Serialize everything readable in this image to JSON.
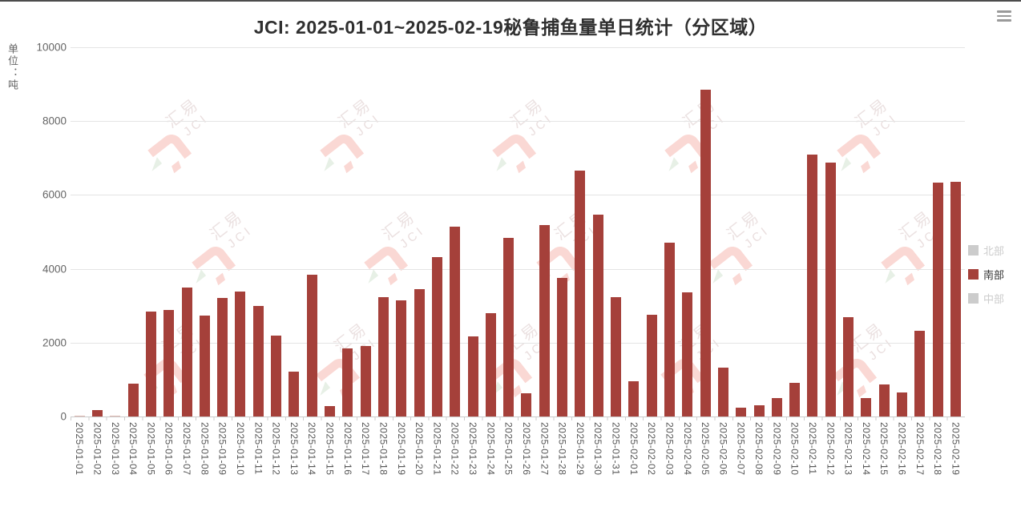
{
  "header": {
    "title": "JCI: 2025-01-01~2025-02-19秘鲁捕鱼量单日统计（分区域）"
  },
  "icons": {
    "menu": "hamburger-menu-icon"
  },
  "y_axis": {
    "name": "单位：吨",
    "ticks": [
      0,
      2000,
      4000,
      6000,
      8000,
      10000
    ]
  },
  "legend": {
    "position": "right",
    "items": [
      {
        "label": "北部",
        "selected": false
      },
      {
        "label": "南部",
        "selected": true
      },
      {
        "label": "中部",
        "selected": false
      }
    ]
  },
  "watermark": {
    "text_cn": "汇易",
    "text_en": "JCI"
  },
  "colors": {
    "bar": "#a5403a",
    "bar_tiny": "#deb7b1",
    "legend_unselected": "#cccccc",
    "legend_selected_text": "#333333",
    "grid_line": "#e4e4e4",
    "axis_line": "#cccccc",
    "tick_label": "#666666"
  },
  "chart_data": {
    "type": "bar",
    "title": "JCI: 2025-01-01~2025-02-19秘鲁捕鱼量单日统计（分区域）",
    "xlabel": "",
    "ylabel": "单位：吨",
    "ylim": [
      0,
      10000
    ],
    "grid": true,
    "legend_position": "right",
    "categories": [
      "2025-01-01",
      "2025-01-02",
      "2025-01-03",
      "2025-01-04",
      "2025-01-05",
      "2025-01-06",
      "2025-01-07",
      "2025-01-08",
      "2025-01-09",
      "2025-01-10",
      "2025-01-11",
      "2025-01-12",
      "2025-01-13",
      "2025-01-14",
      "2025-01-15",
      "2025-01-16",
      "2025-01-17",
      "2025-01-18",
      "2025-01-19",
      "2025-01-20",
      "2025-01-21",
      "2025-01-22",
      "2025-01-23",
      "2025-01-24",
      "2025-01-25",
      "2025-01-26",
      "2025-01-27",
      "2025-01-28",
      "2025-01-29",
      "2025-01-30",
      "2025-01-31",
      "2025-02-01",
      "2025-02-02",
      "2025-02-03",
      "2025-02-04",
      "2025-02-05",
      "2025-02-06",
      "2025-02-07",
      "2025-02-08",
      "2025-02-09",
      "2025-02-10",
      "2025-02-11",
      "2025-02-12",
      "2025-02-13",
      "2025-02-14",
      "2025-02-15",
      "2025-02-16",
      "2025-02-17",
      "2025-02-18",
      "2025-02-19"
    ],
    "series": [
      {
        "name": "南部",
        "color": "#a5403a",
        "values": [
          30,
          180,
          20,
          890,
          2850,
          2890,
          3490,
          2740,
          3220,
          3390,
          2990,
          2190,
          1210,
          3840,
          290,
          1850,
          1910,
          3230,
          3150,
          3440,
          4310,
          5140,
          2180,
          2790,
          4840,
          620,
          5180,
          3750,
          6670,
          5460,
          3240,
          960,
          2760,
          4700,
          3370,
          8840,
          1320,
          230,
          300,
          490,
          920,
          7100,
          6880,
          2690,
          490,
          860,
          650,
          2320,
          6340,
          6360
        ]
      }
    ]
  }
}
